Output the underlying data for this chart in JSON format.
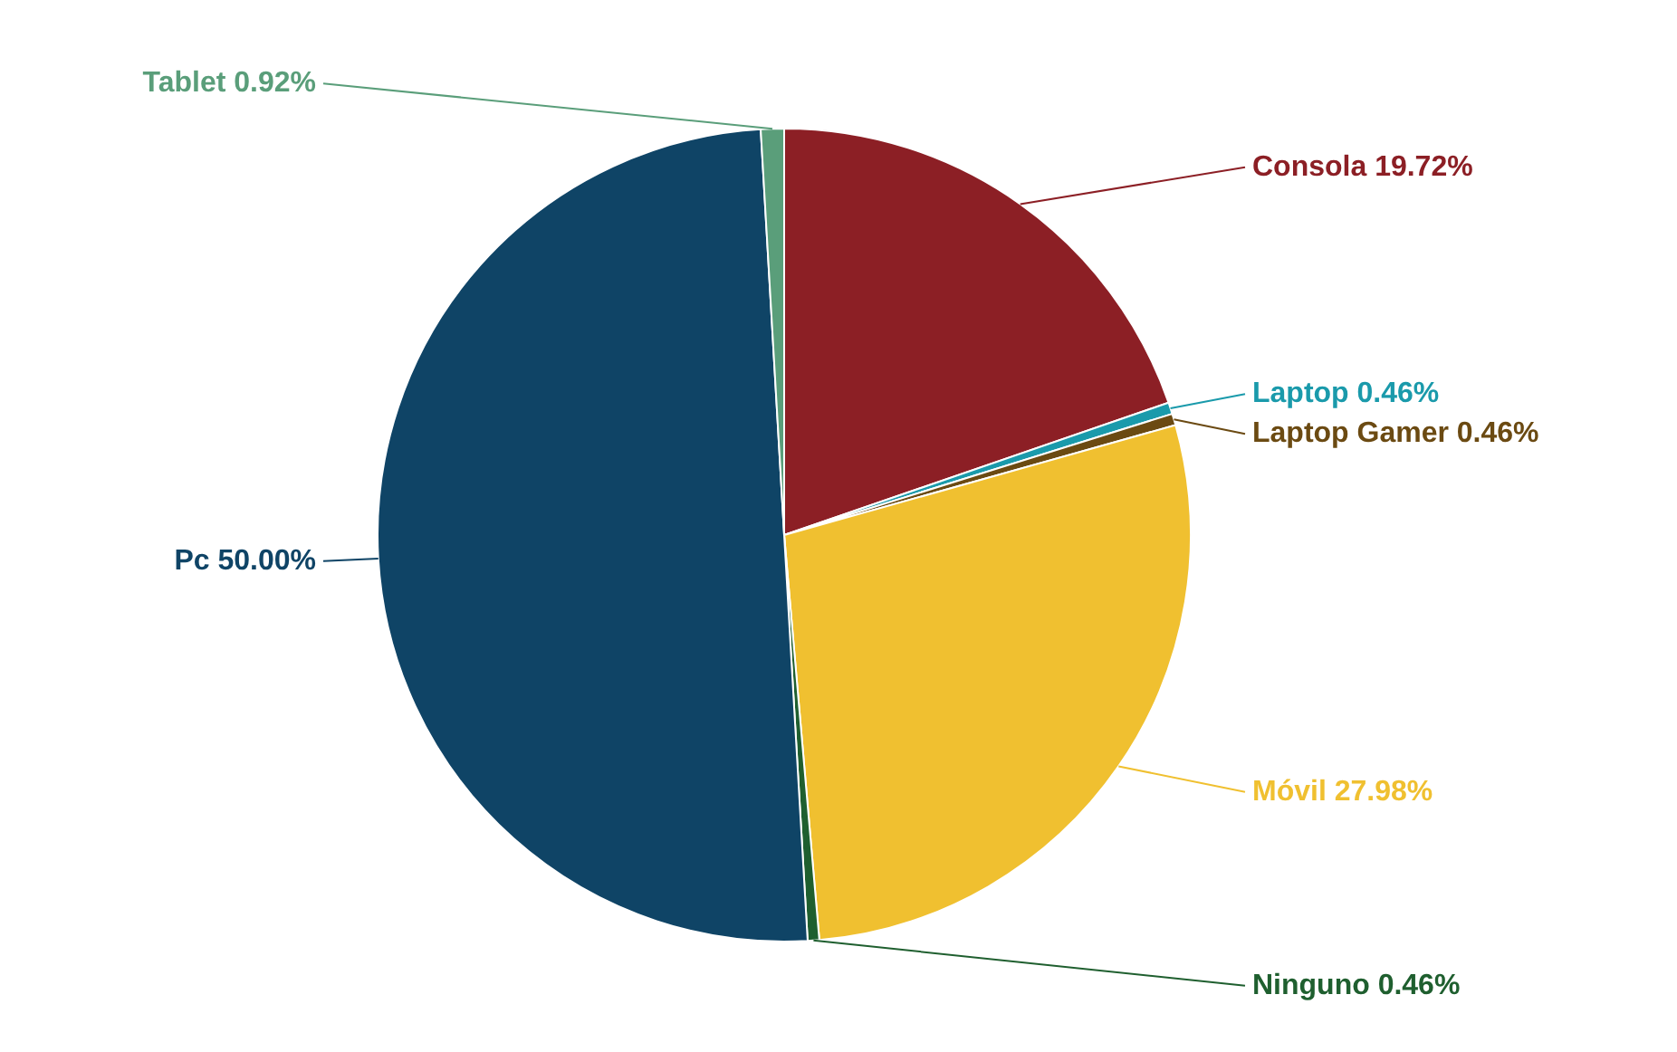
{
  "chart_data": {
    "type": "pie",
    "categories": [
      "Consola",
      "Laptop",
      "Laptop Gamer",
      "Móvil",
      "Ninguno",
      "Pc",
      "Tablet"
    ],
    "values": [
      19.72,
      0.46,
      0.46,
      27.98,
      0.46,
      50.0,
      0.92
    ],
    "colors": [
      "#8c1f25",
      "#1a9aab",
      "#6b4a12",
      "#f0c030",
      "#1f5f2f",
      "#0f4466",
      "#5a9e7a"
    ],
    "value_labels": [
      "19.72%",
      "0.46%",
      "0.46%",
      "27.98%",
      "0.46%",
      "50.00%",
      "0.92%"
    ],
    "legend": false
  }
}
